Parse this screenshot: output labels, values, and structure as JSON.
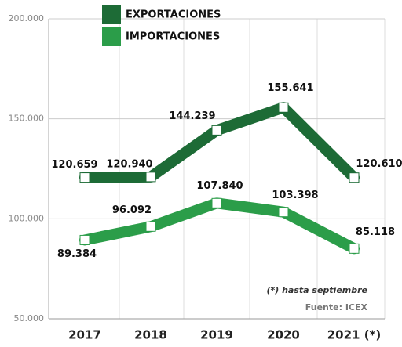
{
  "chart_data": {
    "type": "line",
    "categories": [
      "2017",
      "2018",
      "2019",
      "2020",
      "2021 (*)"
    ],
    "series": [
      {
        "name": "EXPORTACIONES",
        "color": "#1d6b36",
        "values": [
          120659,
          120940,
          144239,
          155641,
          120610
        ],
        "value_labels": [
          "120.659",
          "120.940",
          "144.239",
          "155.641",
          "120.610"
        ]
      },
      {
        "name": "IMPORTACIONES",
        "color": "#2b9d49",
        "values": [
          89384,
          96092,
          107840,
          103398,
          85118
        ],
        "value_labels": [
          "89.384",
          "96.092",
          "107.840",
          "103.398",
          "85.118"
        ]
      }
    ],
    "ylim": [
      50000,
      200000
    ],
    "yticks": [
      {
        "value": 50000,
        "label": "50.000"
      },
      {
        "value": 100000,
        "label": "100.000"
      },
      {
        "value": 150000,
        "label": "150.000"
      },
      {
        "value": 200000,
        "label": "200.000"
      }
    ],
    "grid": true,
    "annotations": [
      "(*) hasta septiembre",
      "Fuente: ICEX"
    ]
  }
}
